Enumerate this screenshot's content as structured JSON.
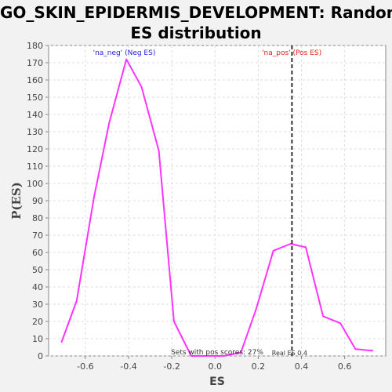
{
  "title": {
    "line1": "GO_SKIN_EPIDERMIS_DEVELOPMENT: Random",
    "line2": "ES distribution"
  },
  "chart_data": {
    "type": "line",
    "xlabel": "ES",
    "ylabel": "P(ES)",
    "xlim": [
      -0.77,
      0.79
    ],
    "ylim": [
      0,
      180
    ],
    "xticks": [
      -0.6,
      -0.4,
      -0.2,
      0.0,
      0.2,
      0.4,
      0.6
    ],
    "xtick_labels": [
      "-0.6",
      "-0.4",
      "-0.2",
      "0.0",
      "0.2",
      "0.4",
      "0.6"
    ],
    "yticks": [
      0,
      10,
      20,
      30,
      40,
      50,
      60,
      70,
      80,
      90,
      100,
      110,
      120,
      130,
      140,
      150,
      160,
      170,
      180
    ],
    "grid": true,
    "series": [
      {
        "color": "#ff33ff",
        "x": [
          -0.71,
          -0.64,
          -0.56,
          -0.49,
          -0.41,
          -0.34,
          -0.26,
          -0.19,
          -0.11,
          -0.04,
          0.04,
          0.12,
          0.19,
          0.27,
          0.35,
          0.42,
          0.5,
          0.58,
          0.65,
          0.73
        ],
        "y": [
          8,
          32,
          92,
          135,
          172,
          156,
          119,
          20,
          0,
          0,
          0,
          2,
          27,
          61,
          65,
          63,
          23,
          19,
          4,
          3
        ]
      }
    ],
    "reference_line": {
      "x": 0.356,
      "style": "dashed",
      "color": "#333333"
    },
    "annotations": {
      "neg_label": "'na_neg' (Neg ES)",
      "neg_color": "#2222dd",
      "pos_label": "'na_pos' (Pos ES)",
      "pos_color": "#dd2222",
      "pos_scores_text": "Sets with pos scores: 27%",
      "real_es_text": "Real ES 0.4"
    }
  }
}
